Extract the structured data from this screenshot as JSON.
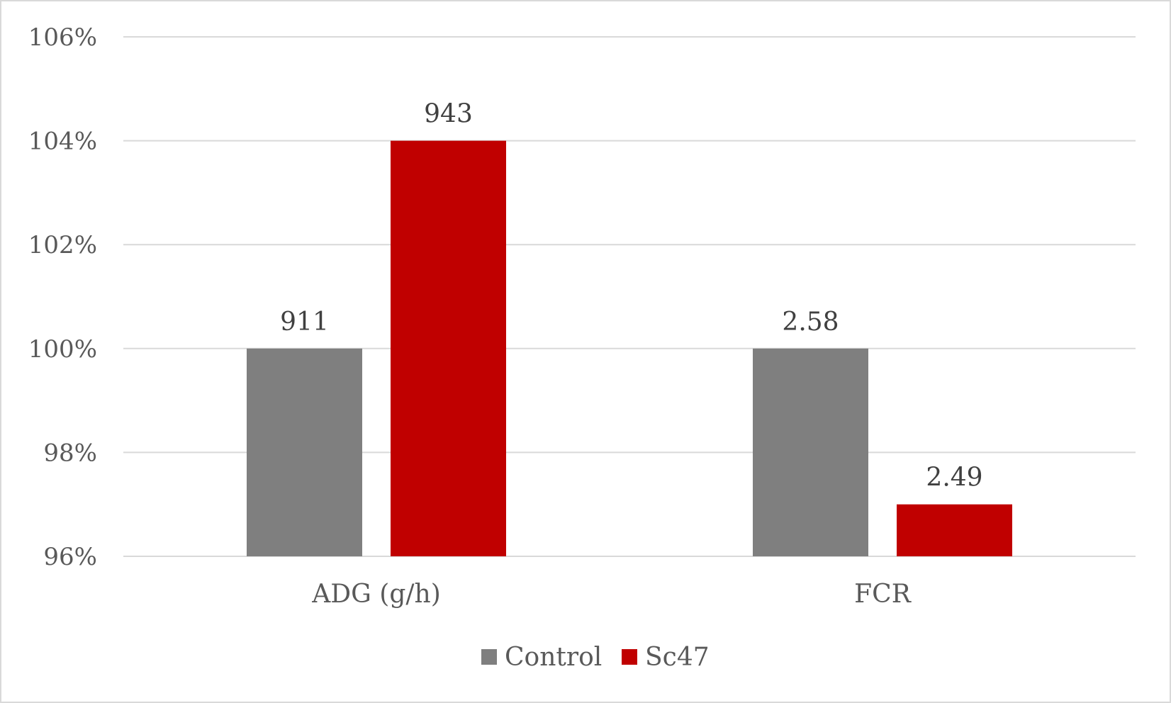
{
  "chart_data": {
    "type": "bar",
    "categories": [
      "ADG (g/h)",
      "FCR"
    ],
    "series": [
      {
        "name": "Control",
        "values": [
          100,
          100
        ],
        "labels": [
          "911",
          "2.58"
        ],
        "color": "#7f7f7f"
      },
      {
        "name": "Sc47",
        "values": [
          104,
          97
        ],
        "labels": [
          "943",
          "2.49"
        ],
        "color": "#c00000"
      }
    ],
    "ylim": [
      96,
      106
    ],
    "yticks": [
      {
        "value": 96,
        "label": "96%"
      },
      {
        "value": 98,
        "label": "98%"
      },
      {
        "value": 100,
        "label": "100%"
      },
      {
        "value": 102,
        "label": "102%"
      },
      {
        "value": 104,
        "label": "104%"
      },
      {
        "value": 106,
        "label": "106%"
      }
    ],
    "grid": true,
    "gridline_color": "#d9d9d9",
    "legend_position": "bottom"
  }
}
